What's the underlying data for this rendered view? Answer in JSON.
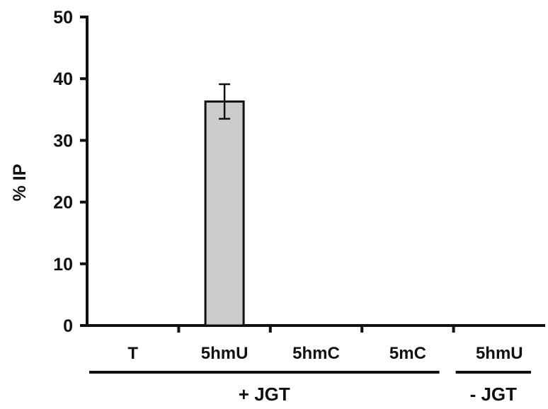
{
  "chart_data": {
    "type": "bar",
    "title": "",
    "xlabel": "",
    "ylabel": "% IP",
    "ylim": [
      0,
      50
    ],
    "yticks": [
      0,
      10,
      20,
      30,
      40,
      50
    ],
    "ytick_labels": [
      "0",
      "10",
      "20",
      "30",
      "40",
      "50"
    ],
    "categories": [
      "T",
      "5hmU",
      "5hmC",
      "5mC",
      "5hmU"
    ],
    "values": [
      0,
      36.3,
      0,
      0,
      0
    ],
    "errors": [
      0,
      2.8,
      0,
      0,
      0
    ],
    "groups": [
      {
        "label": "+ JGT",
        "categories": [
          0,
          1,
          2,
          3
        ]
      },
      {
        "label": "- JGT",
        "categories": [
          4
        ]
      }
    ],
    "grid": false,
    "colors": {
      "bar_fill": "#cccccc",
      "bar_stroke": "#111111",
      "axis": "#111111"
    }
  }
}
